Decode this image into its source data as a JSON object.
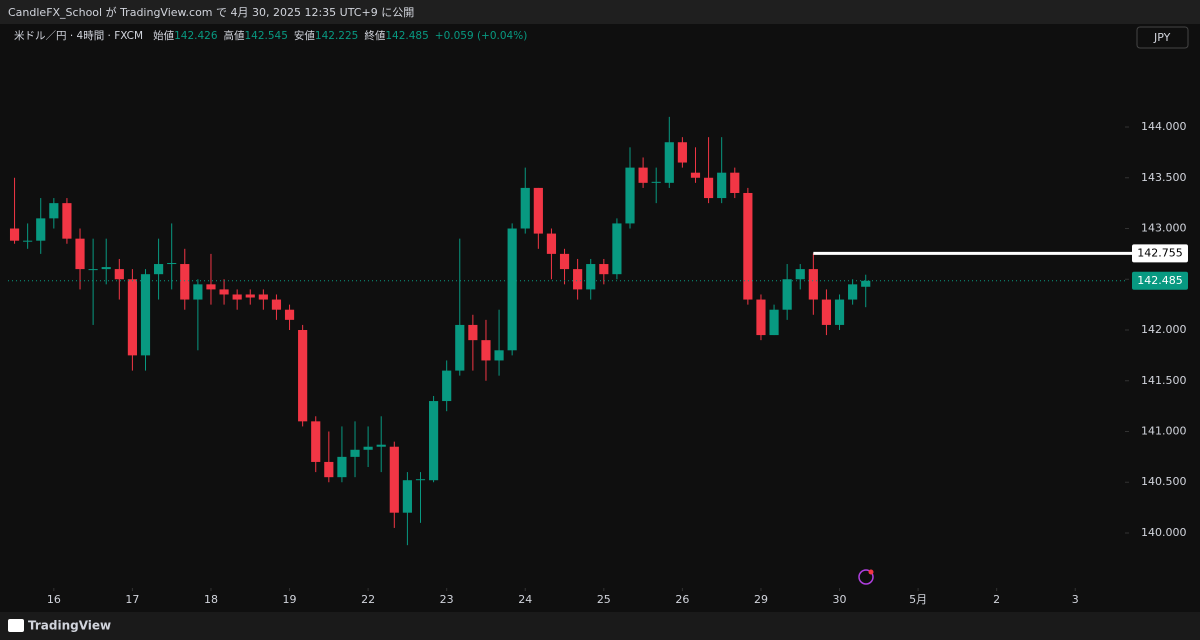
{
  "header": {
    "title": "CandleFX_School が TradingView.com で 4月 30, 2025 12:35 UTC+9 に公開"
  },
  "footer": {
    "brand": "TradingView"
  },
  "chart_data": {
    "type": "candlestick",
    "symbol": "米ドル／円 · 4時間 · FXCM",
    "legend": [
      {
        "label": "始値",
        "value": "142.426"
      },
      {
        "label": "高値",
        "value": "142.545"
      },
      {
        "label": "安値",
        "value": "142.225"
      },
      {
        "label": "終値",
        "value": "142.485"
      }
    ],
    "change": "+0.059 (+0.04%)",
    "currency": "JPY",
    "up_color": "#089981",
    "down_color": "#f23645",
    "open": [
      143.0,
      142.88,
      142.88,
      143.1,
      143.25,
      142.9,
      142.6,
      142.6,
      142.6,
      142.5,
      141.75,
      142.55,
      142.65,
      142.65,
      142.3,
      142.45,
      142.4,
      142.35,
      142.35,
      142.35,
      142.3,
      142.2,
      142.0,
      141.1,
      140.7,
      140.55,
      140.75,
      140.82,
      140.85,
      140.85,
      140.2,
      140.52,
      140.52,
      141.3,
      141.6,
      142.05,
      141.9,
      141.7,
      141.8,
      143.0,
      143.4,
      142.95,
      142.75,
      142.6,
      142.4,
      142.65,
      142.55,
      143.05,
      143.6,
      143.45,
      143.45,
      143.85,
      143.55,
      143.5,
      143.3,
      143.55,
      143.35,
      142.3,
      141.95,
      142.2,
      142.5,
      142.6,
      142.3,
      142.05,
      142.3,
      142.426
    ],
    "high": [
      143.5,
      143.05,
      143.3,
      143.3,
      143.3,
      143.0,
      142.9,
      142.9,
      142.7,
      142.6,
      142.6,
      142.9,
      143.05,
      142.8,
      142.5,
      142.75,
      142.5,
      142.4,
      142.4,
      142.4,
      142.35,
      142.25,
      142.05,
      141.15,
      141.0,
      141.05,
      141.1,
      141.05,
      141.15,
      140.9,
      140.6,
      140.6,
      141.35,
      141.7,
      142.9,
      142.15,
      142.1,
      142.2,
      143.05,
      143.6,
      143.4,
      143.0,
      142.8,
      142.7,
      142.7,
      142.7,
      143.1,
      143.8,
      143.7,
      143.6,
      144.1,
      143.9,
      143.8,
      143.9,
      143.9,
      143.6,
      143.4,
      142.35,
      142.25,
      142.65,
      142.65,
      142.755,
      142.4,
      142.35,
      142.5,
      142.545
    ],
    "low": [
      142.85,
      142.8,
      142.75,
      143.0,
      142.85,
      142.4,
      142.05,
      142.45,
      142.3,
      141.6,
      141.6,
      142.3,
      142.4,
      142.2,
      141.8,
      142.25,
      142.25,
      142.2,
      142.25,
      142.2,
      142.1,
      142.0,
      141.05,
      140.6,
      140.5,
      140.5,
      140.55,
      140.65,
      140.6,
      140.05,
      139.88,
      140.1,
      140.5,
      141.2,
      141.55,
      141.6,
      141.5,
      141.55,
      141.75,
      142.95,
      142.8,
      142.5,
      142.45,
      142.3,
      142.3,
      142.45,
      142.5,
      143.0,
      143.4,
      143.25,
      143.4,
      143.6,
      143.45,
      143.25,
      143.25,
      143.3,
      142.25,
      141.9,
      141.95,
      142.1,
      142.4,
      142.15,
      141.95,
      142.0,
      142.25,
      142.225
    ],
    "close": [
      142.88,
      142.88,
      143.1,
      143.25,
      142.9,
      142.6,
      142.6,
      142.62,
      142.5,
      141.75,
      142.55,
      142.65,
      142.66,
      142.3,
      142.45,
      142.4,
      142.35,
      142.3,
      142.32,
      142.3,
      142.2,
      142.1,
      141.1,
      140.7,
      140.55,
      140.75,
      140.82,
      140.85,
      140.87,
      140.2,
      140.52,
      140.53,
      141.3,
      141.6,
      142.05,
      141.9,
      141.7,
      141.8,
      143.0,
      143.4,
      142.95,
      142.75,
      142.6,
      142.4,
      142.65,
      142.55,
      143.05,
      143.6,
      143.45,
      143.46,
      143.85,
      143.65,
      143.5,
      143.3,
      143.55,
      143.35,
      142.3,
      141.95,
      142.2,
      142.5,
      142.6,
      142.3,
      142.05,
      142.3,
      142.45,
      142.485
    ],
    "xlim": [
      -0.5,
      84.8
    ],
    "xticks": [
      {
        "value": 3,
        "label": "16"
      },
      {
        "value": 9,
        "label": "17"
      },
      {
        "value": 15,
        "label": "18"
      },
      {
        "value": 21,
        "label": "19"
      },
      {
        "value": 27,
        "label": "22"
      },
      {
        "value": 33,
        "label": "23"
      },
      {
        "value": 39,
        "label": "24"
      },
      {
        "value": 45,
        "label": "25"
      },
      {
        "value": 51,
        "label": "26"
      },
      {
        "value": 57,
        "label": "29"
      },
      {
        "value": 63,
        "label": "30"
      },
      {
        "value": 69,
        "label": "5月"
      },
      {
        "value": 75,
        "label": "2"
      },
      {
        "value": 81,
        "label": "3"
      }
    ],
    "ylim": [
      139.458,
      145.015
    ],
    "yticks": [
      {
        "value": 140,
        "label": "140.000"
      },
      {
        "value": 140.5,
        "label": "140.500"
      },
      {
        "value": 141,
        "label": "141.000"
      },
      {
        "value": 141.5,
        "label": "141.500"
      },
      {
        "value": 142,
        "label": "142.000"
      },
      {
        "value": 142.5,
        "label": "142.500"
      },
      {
        "value": 143,
        "label": "143.000"
      },
      {
        "value": 143.5,
        "label": "143.500"
      },
      {
        "value": 144,
        "label": "144.000"
      }
    ],
    "horizontal_line": {
      "value": 142.755,
      "label": "142.755",
      "start": 61
    },
    "last_price": {
      "value": 142.485,
      "label": "142.485"
    }
  }
}
